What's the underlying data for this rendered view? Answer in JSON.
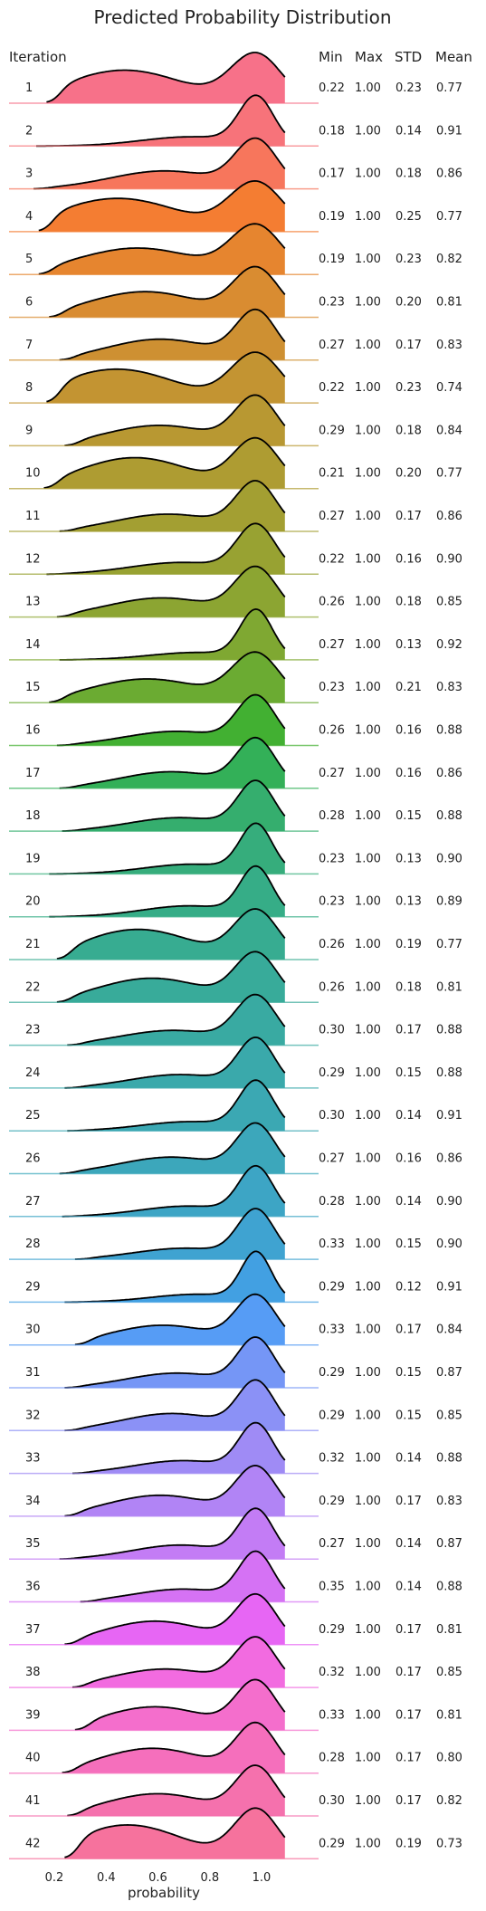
{
  "chart_data": {
    "type": "ridgeline",
    "title": "Predicted Probability Distribution",
    "xlabel": "probability",
    "xlim": [
      0.1,
      1.15
    ],
    "xticks": [
      "0.2",
      "0.4",
      "0.6",
      "0.8",
      "1.0"
    ],
    "xtick_values": [
      0.2,
      0.4,
      0.6,
      0.8,
      1.0
    ],
    "column_headers": {
      "iteration": "Iteration",
      "min": "Min",
      "max": "Max",
      "std": "STD",
      "mean": "Mean"
    },
    "rows": [
      {
        "iteration": "1",
        "min": "0.22",
        "max": "1.00",
        "std": "0.23",
        "mean": "0.77",
        "color": "#f77189"
      },
      {
        "iteration": "2",
        "min": "0.18",
        "max": "1.00",
        "std": "0.14",
        "mean": "0.91",
        "color": "#f7737a"
      },
      {
        "iteration": "3",
        "min": "0.17",
        "max": "1.00",
        "std": "0.18",
        "mean": "0.86",
        "color": "#f7765c"
      },
      {
        "iteration": "4",
        "min": "0.19",
        "max": "1.00",
        "std": "0.25",
        "mean": "0.77",
        "color": "#f47d32"
      },
      {
        "iteration": "5",
        "min": "0.19",
        "max": "1.00",
        "std": "0.23",
        "mean": "0.82",
        "color": "#e6852f"
      },
      {
        "iteration": "6",
        "min": "0.23",
        "max": "1.00",
        "std": "0.20",
        "mean": "0.81",
        "color": "#d98c31"
      },
      {
        "iteration": "7",
        "min": "0.27",
        "max": "1.00",
        "std": "0.17",
        "mean": "0.83",
        "color": "#ce9032"
      },
      {
        "iteration": "8",
        "min": "0.22",
        "max": "1.00",
        "std": "0.23",
        "mean": "0.74",
        "color": "#c39432"
      },
      {
        "iteration": "9",
        "min": "0.29",
        "max": "1.00",
        "std": "0.18",
        "mean": "0.84",
        "color": "#b89832"
      },
      {
        "iteration": "10",
        "min": "0.21",
        "max": "1.00",
        "std": "0.20",
        "mean": "0.77",
        "color": "#ae9c32"
      },
      {
        "iteration": "11",
        "min": "0.27",
        "max": "1.00",
        "std": "0.17",
        "mean": "0.86",
        "color": "#a39f32"
      },
      {
        "iteration": "12",
        "min": "0.22",
        "max": "1.00",
        "std": "0.16",
        "mean": "0.90",
        "color": "#98a232"
      },
      {
        "iteration": "13",
        "min": "0.26",
        "max": "1.00",
        "std": "0.18",
        "mean": "0.85",
        "color": "#8ca532"
      },
      {
        "iteration": "14",
        "min": "0.27",
        "max": "1.00",
        "std": "0.13",
        "mean": "0.92",
        "color": "#7fa832"
      },
      {
        "iteration": "15",
        "min": "0.23",
        "max": "1.00",
        "std": "0.21",
        "mean": "0.83",
        "color": "#6bab32"
      },
      {
        "iteration": "16",
        "min": "0.26",
        "max": "1.00",
        "std": "0.16",
        "mean": "0.88",
        "color": "#42b032"
      },
      {
        "iteration": "17",
        "min": "0.27",
        "max": "1.00",
        "std": "0.16",
        "mean": "0.86",
        "color": "#33b058"
      },
      {
        "iteration": "18",
        "min": "0.28",
        "max": "1.00",
        "std": "0.15",
        "mean": "0.88",
        "color": "#35ae6e"
      },
      {
        "iteration": "19",
        "min": "0.23",
        "max": "1.00",
        "std": "0.13",
        "mean": "0.90",
        "color": "#36ad7c"
      },
      {
        "iteration": "20",
        "min": "0.23",
        "max": "1.00",
        "std": "0.13",
        "mean": "0.89",
        "color": "#36ad87"
      },
      {
        "iteration": "21",
        "min": "0.26",
        "max": "1.00",
        "std": "0.19",
        "mean": "0.77",
        "color": "#37ac91"
      },
      {
        "iteration": "22",
        "min": "0.26",
        "max": "1.00",
        "std": "0.18",
        "mean": "0.81",
        "color": "#38ab9a"
      },
      {
        "iteration": "23",
        "min": "0.30",
        "max": "1.00",
        "std": "0.17",
        "mean": "0.88",
        "color": "#39aaa2"
      },
      {
        "iteration": "24",
        "min": "0.29",
        "max": "1.00",
        "std": "0.15",
        "mean": "0.88",
        "color": "#3aa9ab"
      },
      {
        "iteration": "25",
        "min": "0.30",
        "max": "1.00",
        "std": "0.14",
        "mean": "0.91",
        "color": "#3ba8b3"
      },
      {
        "iteration": "26",
        "min": "0.27",
        "max": "1.00",
        "std": "0.16",
        "mean": "0.86",
        "color": "#3ca7bb"
      },
      {
        "iteration": "27",
        "min": "0.28",
        "max": "1.00",
        "std": "0.14",
        "mean": "0.90",
        "color": "#3da5c5"
      },
      {
        "iteration": "28",
        "min": "0.33",
        "max": "1.00",
        "std": "0.15",
        "mean": "0.90",
        "color": "#3fa3d1"
      },
      {
        "iteration": "29",
        "min": "0.29",
        "max": "1.00",
        "std": "0.12",
        "mean": "0.91",
        "color": "#42a0e2"
      },
      {
        "iteration": "30",
        "min": "0.33",
        "max": "1.00",
        "std": "0.17",
        "mean": "0.84",
        "color": "#569cf5"
      },
      {
        "iteration": "31",
        "min": "0.29",
        "max": "1.00",
        "std": "0.15",
        "mean": "0.87",
        "color": "#7596f6"
      },
      {
        "iteration": "32",
        "min": "0.29",
        "max": "1.00",
        "std": "0.15",
        "mean": "0.85",
        "color": "#8b91f6"
      },
      {
        "iteration": "33",
        "min": "0.32",
        "max": "1.00",
        "std": "0.14",
        "mean": "0.88",
        "color": "#9f8bf5"
      },
      {
        "iteration": "34",
        "min": "0.29",
        "max": "1.00",
        "std": "0.17",
        "mean": "0.83",
        "color": "#b184f5"
      },
      {
        "iteration": "35",
        "min": "0.27",
        "max": "1.00",
        "std": "0.14",
        "mean": "0.87",
        "color": "#c37cf5"
      },
      {
        "iteration": "36",
        "min": "0.35",
        "max": "1.00",
        "std": "0.14",
        "mean": "0.88",
        "color": "#d572f4"
      },
      {
        "iteration": "37",
        "min": "0.29",
        "max": "1.00",
        "std": "0.17",
        "mean": "0.81",
        "color": "#e766f4"
      },
      {
        "iteration": "38",
        "min": "0.32",
        "max": "1.00",
        "std": "0.17",
        "mean": "0.85",
        "color": "#f26be0"
      },
      {
        "iteration": "39",
        "min": "0.33",
        "max": "1.00",
        "std": "0.17",
        "mean": "0.81",
        "color": "#f46ecc"
      },
      {
        "iteration": "40",
        "min": "0.28",
        "max": "1.00",
        "std": "0.17",
        "mean": "0.80",
        "color": "#f56fbc"
      },
      {
        "iteration": "41",
        "min": "0.30",
        "max": "1.00",
        "std": "0.17",
        "mean": "0.82",
        "color": "#f571ad"
      },
      {
        "iteration": "42",
        "min": "0.29",
        "max": "1.00",
        "std": "0.19",
        "mean": "0.73",
        "color": "#f6729d"
      }
    ]
  }
}
